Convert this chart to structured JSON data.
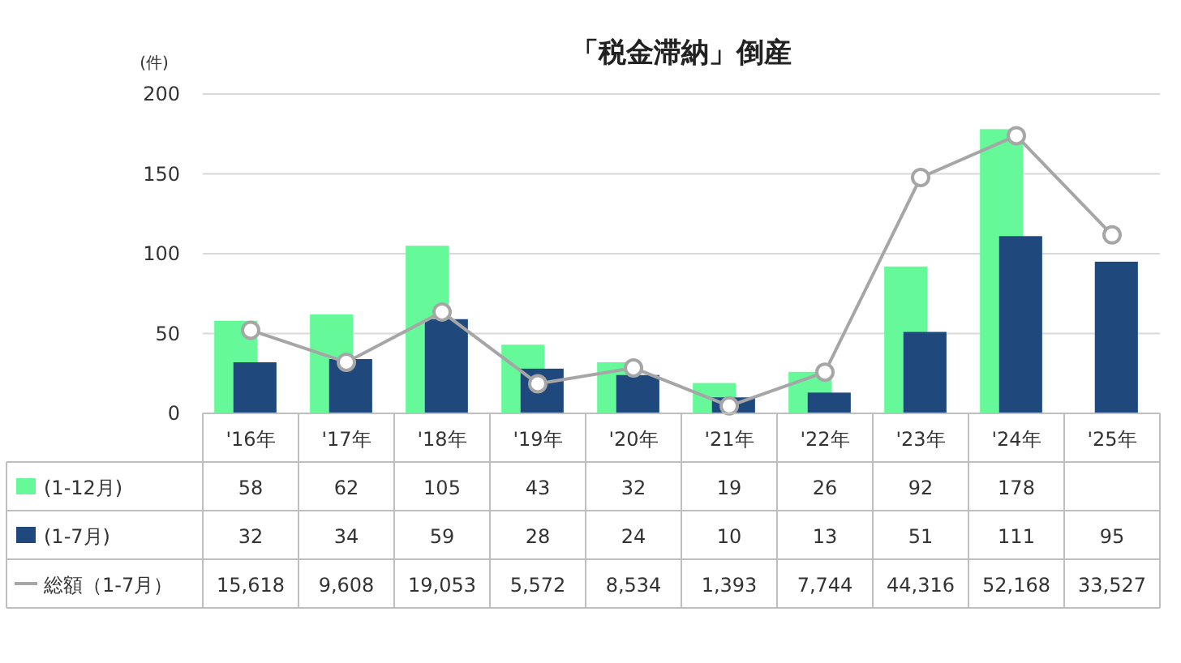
{
  "chart_data": {
    "type": "bar",
    "title": "「税金滞納」倒産",
    "ylabel": "(件)",
    "categories": [
      "'16年",
      "'17年",
      "'18年",
      "'19年",
      "'20年",
      "'21年",
      "'22年",
      "'23年",
      "'24年",
      "'25年"
    ],
    "series": [
      {
        "name": "(1-12月)",
        "color": "#66f99a",
        "values": [
          58,
          62,
          105,
          43,
          32,
          19,
          26,
          92,
          178,
          null
        ],
        "value_labels": [
          "58",
          "62",
          "105",
          "43",
          "32",
          "19",
          "26",
          "92",
          "178",
          null
        ]
      },
      {
        "name": "(1-7月)",
        "color": "#1f497d",
        "values": [
          32,
          34,
          59,
          28,
          24,
          10,
          13,
          51,
          111,
          95
        ],
        "value_labels": [
          "32",
          "34",
          "59",
          "28",
          "24",
          "10",
          "13",
          "51",
          "111",
          "95"
        ]
      },
      {
        "name": "総額（1-7月）",
        "type": "line",
        "axis": "y2",
        "color": "#a6a6a6",
        "marker": "circle",
        "values": [
          15618,
          9608,
          19053,
          5572,
          8534,
          1393,
          7744,
          44316,
          52168,
          33527
        ],
        "value_labels": [
          "15,618",
          "9,608",
          "19,053",
          "5,572",
          "8,534",
          "1,393",
          "7,744",
          "44,316",
          "52,168",
          "33,527"
        ]
      }
    ],
    "ylim": [
      0,
      200
    ],
    "yticks": [
      0,
      50,
      100,
      150,
      200
    ],
    "y2lim": [
      0,
      60000
    ],
    "grid": "y",
    "legend": "bottom left"
  }
}
